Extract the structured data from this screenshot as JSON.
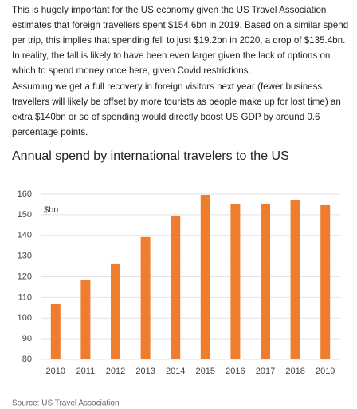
{
  "paragraphs": [
    "This is hugely important for the US economy given the US Travel Association estimates that foreign travellers spent $154.6bn in 2019. Based on a similar spend per trip, this implies that spending fell to just $19.2bn in 2020, a drop of $135.4bn. In reality, the fall is likely to have been even larger given the lack of options on which to spend money once here, given Covid restrictions.",
    "Assuming we get a full recovery in foreign visitors next year (fewer business travellers will likely be offset by more tourists as people make up for lost time) an extra $140bn or so of spending would directly boost US GDP by around 0.6 percentage points."
  ],
  "chart_data": {
    "type": "bar",
    "title": "Annual spend by international travelers to the US",
    "y_label": "$bn",
    "categories": [
      "2010",
      "2011",
      "2012",
      "2013",
      "2014",
      "2015",
      "2016",
      "2017",
      "2018",
      "2019"
    ],
    "values": [
      106.7,
      118.3,
      126.4,
      139.2,
      149.6,
      159.6,
      155.1,
      155.4,
      157.3,
      154.6
    ],
    "color": "#ee7d2e",
    "ylim": [
      80,
      160
    ],
    "yticks": [
      80,
      90,
      100,
      110,
      120,
      130,
      140,
      150,
      160
    ],
    "grid": true
  },
  "source": "Source: US Travel Association"
}
